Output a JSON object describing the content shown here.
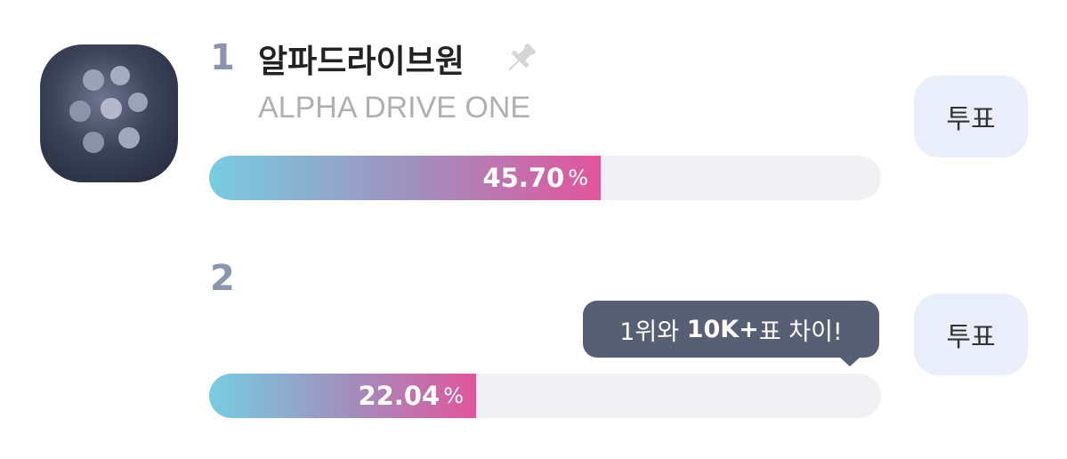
{
  "entries": [
    {
      "rank": "1",
      "name": "알파드라이브원",
      "subname": "ALPHA DRIVE ONE",
      "percent": "45.70",
      "percent_sign": "%",
      "button": "투표"
    },
    {
      "rank": "2",
      "percent": "22.04",
      "percent_sign": "%",
      "button": "투표",
      "tooltip": {
        "before": "1위와 ",
        "bold": "10K+",
        "after": "표 차이!"
      }
    }
  ]
}
